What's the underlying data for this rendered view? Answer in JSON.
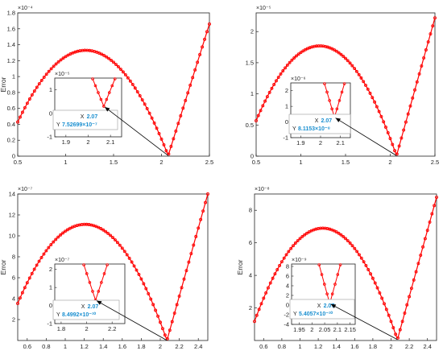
{
  "colors": {
    "series": "#ff0000",
    "axis": "#222222",
    "datatip_value": "#1a8fd0",
    "arrow": "#000000"
  },
  "chart_data": [
    {
      "type": "line",
      "ylabel": "Error",
      "xlim": [
        0.5,
        2.5
      ],
      "ylim": [
        0,
        0.00018
      ],
      "y_exponent": "×10⁻⁴",
      "x_ticks": [
        0.5,
        1,
        1.5,
        2,
        2.5
      ],
      "y_ticks": [
        0,
        0.2,
        0.4,
        0.6,
        0.8,
        1,
        1.2,
        1.4,
        1.6,
        1.8
      ],
      "series": [
        {
          "peak": {
            "x": 1.21,
            "y": 0.000133
          },
          "minimum": {
            "x": 2.07,
            "y": 7.52699e-07
          },
          "end": {
            "x": 2.5,
            "y": 0.000166
          }
        }
      ],
      "inset": {
        "xlim": [
          1.85,
          2.15
        ],
        "ylim": [
          -1,
          1.5
        ],
        "x_ticks": [
          1.9,
          2,
          2.1
        ],
        "y_ticks": [
          -1,
          0,
          1
        ],
        "y_exponent": "×10⁻⁵",
        "datatip": {
          "x_label": "X",
          "x_value": "2.07",
          "y_label": "Y",
          "y_value": "7.52699×10⁻⁷"
        }
      }
    },
    {
      "type": "line",
      "ylabel": "",
      "xlim": [
        0.5,
        2.5
      ],
      "ylim": [
        0,
        2.3e-05
      ],
      "y_exponent": "×10⁻⁵",
      "x_ticks": [
        0.5,
        1,
        1.5,
        2,
        2.5
      ],
      "y_ticks": [
        0,
        0.5,
        1,
        1.5,
        2
      ],
      "series": [
        {
          "peak": {
            "x": 1.21,
            "y": 1.77e-05
          },
          "minimum": {
            "x": 2.07,
            "y": 8.1153e-08
          },
          "end": {
            "x": 2.5,
            "y": 2.22e-05
          }
        }
      ],
      "inset": {
        "xlim": [
          1.85,
          2.15
        ],
        "ylim": [
          -1,
          2.5
        ],
        "x_ticks": [
          1.9,
          2,
          2.1
        ],
        "y_ticks": [
          -1,
          0,
          1,
          2
        ],
        "y_exponent": "×10⁻⁶",
        "datatip": {
          "x_label": "X",
          "x_value": "2.07",
          "y_label": "Y",
          "y_value": "8.1153×10⁻⁸"
        }
      }
    },
    {
      "type": "line",
      "ylabel": "Error",
      "xlim": [
        0.5,
        2.5
      ],
      "ylim": [
        0,
        1.4e-06
      ],
      "y_exponent": "×10⁻⁷",
      "x_ticks": [
        0.6,
        0.8,
        1,
        1.2,
        1.4,
        1.6,
        1.8,
        2,
        2.2,
        2.4
      ],
      "y_ticks": [
        2,
        4,
        6,
        8,
        10,
        12,
        14
      ],
      "series": [
        {
          "peak": {
            "x": 1.21,
            "y": 1.11e-06
          },
          "minimum": {
            "x": 2.07,
            "y": 8.4992e-10
          },
          "end": {
            "x": 2.5,
            "y": 1.4e-06
          }
        }
      ],
      "inset": {
        "xlim": [
          1.75,
          2.3
        ],
        "ylim": [
          -1,
          2.3
        ],
        "x_ticks": [
          1.8,
          2,
          2.2
        ],
        "y_ticks": [
          -1,
          0,
          1,
          2
        ],
        "y_exponent": "×10⁻⁷",
        "datatip": {
          "x_label": "X",
          "x_value": "2.07",
          "y_label": "Y",
          "y_value": "8.4992×10⁻¹⁰"
        }
      }
    },
    {
      "type": "line",
      "ylabel": "Error",
      "xlim": [
        0.5,
        2.5
      ],
      "ylim": [
        0,
        9e-08
      ],
      "y_exponent": "×10⁻⁸",
      "x_ticks": [
        0.6,
        0.8,
        1,
        1.2,
        1.4,
        1.6,
        1.8,
        2,
        2.2,
        2.4
      ],
      "y_ticks": [
        2,
        4,
        6,
        8
      ],
      "series": [
        {
          "peak": {
            "x": 1.25,
            "y": 6.9e-08
          },
          "minimum": {
            "x": 2.07,
            "y": 5.4057e-10
          },
          "end": {
            "x": 2.5,
            "y": 8.8e-08
          }
        }
      ],
      "inset": {
        "xlim": [
          1.92,
          2.17
        ],
        "ylim": [
          -4,
          8.5
        ],
        "x_ticks": [
          1.95,
          2,
          2.05,
          2.1,
          2.15
        ],
        "y_ticks": [
          -4,
          -2,
          0,
          2,
          4,
          6,
          8
        ],
        "y_exponent": "×10⁻⁹",
        "datatip": {
          "x_label": "X",
          "x_value": "2.07",
          "y_label": "Y",
          "y_value": "5.4057×10⁻¹⁰"
        }
      }
    }
  ]
}
